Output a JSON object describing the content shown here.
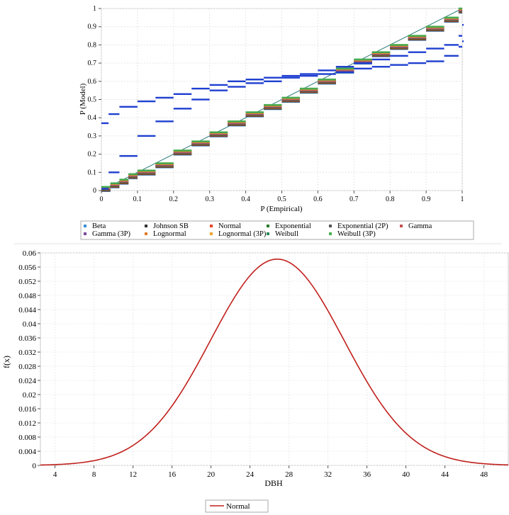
{
  "chart_data": [
    {
      "type": "scatter",
      "title": "",
      "xlabel": "P (Empirical)",
      "ylabel": "P (Model)",
      "xlim": [
        0,
        1
      ],
      "ylim": [
        0,
        1
      ],
      "x_ticks": [
        "0",
        "0.1",
        "0.2",
        "0.3",
        "0.4",
        "0.5",
        "0.6",
        "0.7",
        "0.8",
        "0.9",
        "1"
      ],
      "y_ticks": [
        "0",
        "0.1",
        "0.2",
        "0.3",
        "0.4",
        "0.5",
        "0.6",
        "0.7",
        "0.8",
        "0.9",
        "1"
      ],
      "grid": true,
      "legend_position": "bottom",
      "series": [
        {
          "name": "Beta",
          "color": "#3b8fd0"
        },
        {
          "name": "Johnson SB",
          "color": "#333333"
        },
        {
          "name": "Normal",
          "color": "#e8432a"
        },
        {
          "name": "Exponential",
          "color": "#2a7a2a"
        },
        {
          "name": "Exponential (2P)",
          "color": "#555555"
        },
        {
          "name": "Gamma",
          "color": "#c0504d"
        },
        {
          "name": "Gamma (3P)",
          "color": "#7a4aa0"
        },
        {
          "name": "Lognormal",
          "color": "#e07b2a"
        },
        {
          "name": "Lognormal (3P)",
          "color": "#f0a030"
        },
        {
          "name": "Weibull",
          "color": "#2e8b57"
        },
        {
          "name": "Weibull (3P)",
          "color": "#4caf50"
        }
      ],
      "diagonal_series": {
        "x": [
          0.0,
          0.025,
          0.05,
          0.075,
          0.1,
          0.15,
          0.2,
          0.25,
          0.3,
          0.35,
          0.4,
          0.45,
          0.5,
          0.55,
          0.6,
          0.65,
          0.7,
          0.75,
          0.8,
          0.85,
          0.9,
          0.95,
          0.99
        ],
        "y": [
          0.01,
          0.03,
          0.05,
          0.08,
          0.1,
          0.14,
          0.21,
          0.26,
          0.31,
          0.37,
          0.42,
          0.46,
          0.5,
          0.55,
          0.6,
          0.66,
          0.71,
          0.75,
          0.79,
          0.84,
          0.89,
          0.94,
          0.99
        ]
      },
      "outlier_series_upper": {
        "color": "#1f3fd0",
        "x": [
          0.0,
          0.02,
          0.05,
          0.1,
          0.15,
          0.2,
          0.25,
          0.3,
          0.35,
          0.4,
          0.45,
          0.5,
          0.55,
          0.6,
          0.65,
          0.7,
          0.75,
          0.8,
          0.85,
          0.9,
          0.95,
          0.99,
          1.0
        ],
        "y": [
          0.37,
          0.42,
          0.46,
          0.49,
          0.51,
          0.53,
          0.56,
          0.58,
          0.6,
          0.61,
          0.62,
          0.63,
          0.64,
          0.66,
          0.68,
          0.7,
          0.72,
          0.74,
          0.76,
          0.78,
          0.8,
          0.85,
          0.91
        ]
      },
      "outlier_series_lower": {
        "color": "#1f3fd0",
        "x": [
          0.0,
          0.02,
          0.05,
          0.1,
          0.15,
          0.2,
          0.25,
          0.3,
          0.35,
          0.4,
          0.45,
          0.5,
          0.55,
          0.6,
          0.65,
          0.7,
          0.75,
          0.8,
          0.85,
          0.9,
          0.95,
          0.99,
          1.0
        ],
        "y": [
          0.01,
          0.1,
          0.19,
          0.3,
          0.38,
          0.45,
          0.5,
          0.55,
          0.57,
          0.59,
          0.6,
          0.62,
          0.63,
          0.64,
          0.65,
          0.67,
          0.68,
          0.69,
          0.7,
          0.71,
          0.74,
          0.79,
          0.82
        ]
      }
    },
    {
      "type": "line",
      "title": "",
      "xlabel": "DBH",
      "ylabel": "f(x)",
      "xlim": [
        2.5,
        50.5
      ],
      "ylim": [
        0,
        0.06
      ],
      "x_ticks": [
        "4",
        "8",
        "12",
        "16",
        "20",
        "24",
        "28",
        "32",
        "36",
        "40",
        "44",
        "48"
      ],
      "y_ticks": [
        "0",
        "0.004",
        "0.008",
        "0.012",
        "0.016",
        "0.02",
        "0.024",
        "0.028",
        "0.032",
        "0.036",
        "0.04",
        "0.044",
        "0.048",
        "0.052",
        "0.056",
        "0.06"
      ],
      "grid": true,
      "legend_position": "bottom",
      "series": [
        {
          "name": "Normal",
          "color": "#c0201c",
          "distribution": {
            "mean": 26.8,
            "sd": 6.85
          }
        }
      ]
    }
  ]
}
